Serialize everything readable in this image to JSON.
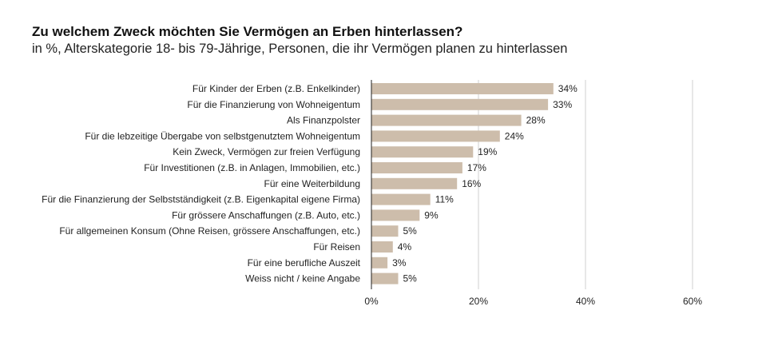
{
  "chart_data": {
    "type": "bar",
    "orientation": "horizontal",
    "title": "Zu welchem Zweck möchten Sie Vermögen an Erben hinterlassen?",
    "subtitle": "in %, Alterskategorie 18- bis 79-Jährige, Personen, die ihr Vermögen planen zu hinterlassen",
    "categories": [
      "Für Kinder der Erben (z.B. Enkelkinder)",
      "Für die Finanzierung von Wohneigentum",
      "Als Finanzpolster",
      "Für die lebzeitige Übergabe von selbstgenutztem Wohneigentum",
      "Kein Zweck, Vermögen zur freien Verfügung",
      "Für Investitionen (z.B. in Anlagen, Immobilien, etc.)",
      "Für eine Weiterbildung",
      "Für die Finanzierung der Selbstständigkeit (z.B. Eigenkapital eigene Firma)",
      "Für grössere Anschaffungen (z.B. Auto, etc.)",
      "Für allgemeinen Konsum (Ohne Reisen, grössere Anschaffungen, etc.)",
      "Für Reisen",
      "Für eine berufliche Auszeit",
      "Weiss nicht / keine Angabe"
    ],
    "values": [
      34,
      33,
      28,
      24,
      19,
      17,
      16,
      11,
      9,
      5,
      4,
      3,
      5
    ],
    "value_labels": [
      "34%",
      "33%",
      "28%",
      "24%",
      "19%",
      "17%",
      "16%",
      "11%",
      "9%",
      "5%",
      "4%",
      "3%",
      "5%"
    ],
    "xlim": [
      0,
      60
    ],
    "xticks": [
      0,
      20,
      40,
      60
    ],
    "xtick_labels": [
      "0%",
      "20%",
      "40%",
      "60%"
    ],
    "grid": true,
    "bar_color": "#cdbdab"
  }
}
